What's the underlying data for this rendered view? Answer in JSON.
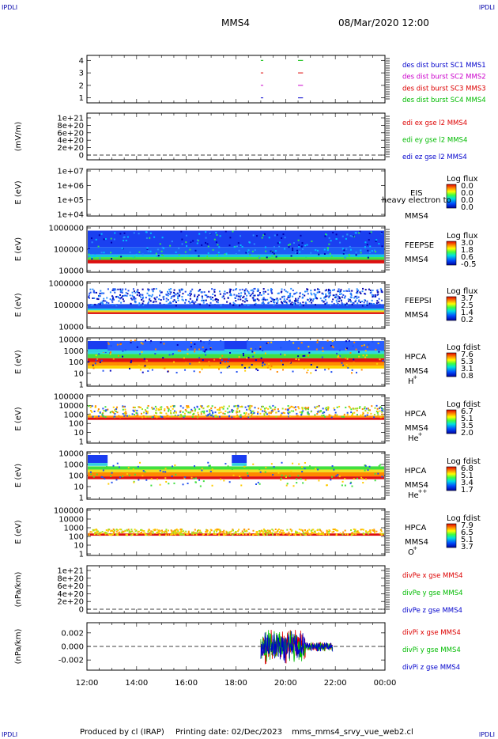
{
  "header": {
    "corner_left_top": "IPDLI",
    "corner_right_top": "IPDLI",
    "mission": "MMS4",
    "datetime": "08/Mar/2020 12:00"
  },
  "footer": {
    "corner_left_bottom": "IPDLI",
    "corner_right_bottom": "IPDLI",
    "produced_by": "Produced by cl (IRAP)",
    "printing_date": "Printing date: 02/Dec/2023",
    "script_name": "mms_mms4_srvy_vue_web2.cl"
  },
  "colors": {
    "mms1": "#0000cc",
    "mms2": "#cc00cc",
    "mms3": "#dd0000",
    "mms4": "#00bb00",
    "x": "#dd0000",
    "y": "#00bb00",
    "z": "#0000cc"
  },
  "chart_data": [
    {
      "type": "scatter",
      "name": "burst-flags",
      "ylabel": "",
      "yticks": [
        "1",
        "2",
        "3",
        "4"
      ],
      "ylim": [
        0.6,
        4.4
      ],
      "legend": [
        "des dist burst SC1 MMS1",
        "des dist burst SC2 MMS2",
        "des dist burst SC3 MMS3",
        "des dist burst SC4 MMS4"
      ],
      "segments_hours": [
        [
          19.0,
          19.1
        ],
        [
          20.5,
          20.7
        ]
      ]
    },
    {
      "type": "line",
      "name": "edi-e-field",
      "ylabel": "(mV/m)",
      "yticks": [
        "0",
        "2e+20",
        "4e+20",
        "6e+20",
        "8e+20",
        "1e+21"
      ],
      "legend": [
        "edi ex gse l2 MMS4",
        "edi ey gse l2 MMS4",
        "edi ez gse l2 MMS4"
      ],
      "zero_line": true
    },
    {
      "type": "heatmap",
      "name": "eis",
      "ylabel": "E (eV)",
      "yticks": [
        "1e+04",
        "1e+05",
        "1e+06",
        "1e+07"
      ],
      "yscale": "log",
      "right_labels": [
        "EIS",
        "MMS4"
      ],
      "overlay_text": "heavy electron to",
      "colorbar": {
        "title": "Log flux",
        "ticks": [
          "0.0",
          "0.0",
          "0.0",
          "0.0"
        ]
      }
    },
    {
      "type": "heatmap",
      "name": "feeps-electron",
      "ylabel": "E (eV)",
      "yticks": [
        "10000",
        "100000",
        "1000000"
      ],
      "yscale": "log",
      "right_labels": [
        "FEEPSE",
        "MMS4"
      ],
      "colorbar": {
        "title": "Log flux",
        "ticks": [
          "3.0",
          "1.8",
          "0.6",
          "-0.5"
        ]
      }
    },
    {
      "type": "heatmap",
      "name": "feeps-ion",
      "ylabel": "E (eV)",
      "yticks": [
        "10000",
        "100000",
        "1000000"
      ],
      "yscale": "log",
      "right_labels": [
        "FEEPSI",
        "MMS4"
      ],
      "colorbar": {
        "title": "Log flux",
        "ticks": [
          "3.7",
          "2.5",
          "1.4",
          "0.2"
        ]
      }
    },
    {
      "type": "heatmap",
      "name": "hpca-h",
      "ylabel": "E (eV)",
      "yticks": [
        "1",
        "10",
        "100",
        "1000",
        "10000"
      ],
      "yscale": "log",
      "right_labels": [
        "HPCA",
        "MMS4",
        "H",
        "+"
      ],
      "colorbar": {
        "title": "Log fdist",
        "ticks": [
          "7.6",
          "5.3",
          "3.1",
          "0.8"
        ]
      }
    },
    {
      "type": "heatmap",
      "name": "hpca-he",
      "ylabel": "E (eV)",
      "yticks": [
        "1",
        "10",
        "100",
        "1000",
        "10000",
        "100000"
      ],
      "yscale": "log",
      "right_labels": [
        "HPCA",
        "MMS4",
        "He",
        "+"
      ],
      "colorbar": {
        "title": "Log fdist",
        "ticks": [
          "6.7",
          "5.1",
          "3.5",
          "2.0"
        ]
      }
    },
    {
      "type": "heatmap",
      "name": "hpca-he2",
      "ylabel": "E (eV)",
      "yticks": [
        "1",
        "10",
        "100",
        "1000",
        "10000"
      ],
      "yscale": "log",
      "right_labels": [
        "HPCA",
        "MMS4",
        "He",
        "++"
      ],
      "colorbar": {
        "title": "Log fdist",
        "ticks": [
          "6.8",
          "5.1",
          "3.4",
          "1.7"
        ]
      }
    },
    {
      "type": "heatmap",
      "name": "hpca-o",
      "ylabel": "E (eV)",
      "yticks": [
        "1",
        "10",
        "100",
        "1000",
        "10000",
        "100000"
      ],
      "yscale": "log",
      "right_labels": [
        "HPCA",
        "MMS4",
        "O",
        "+"
      ],
      "colorbar": {
        "title": "Log fdist",
        "ticks": [
          "7.9",
          "6.5",
          "5.1",
          "3.7"
        ]
      }
    },
    {
      "type": "line",
      "name": "div-pe",
      "ylabel": "(nPa/km)",
      "yticks": [
        "0",
        "2e+20",
        "4e+20",
        "6e+20",
        "8e+20",
        "1e+21"
      ],
      "legend": [
        "divPe x gse MMS4",
        "divPe y gse MMS4",
        "divPe z gse MMS4"
      ],
      "zero_line": true
    },
    {
      "type": "line",
      "name": "div-pi",
      "ylabel": "(nPa/km)",
      "yticks": [
        "-0.002",
        "0.000",
        "0.002"
      ],
      "ylim": [
        -0.0035,
        0.0035
      ],
      "legend": [
        "divPi x gse MMS4",
        "divPi y gse MMS4",
        "divPi z gse MMS4"
      ],
      "zero_line": true,
      "activity_hours": [
        19.0,
        21.9
      ]
    }
  ],
  "time_axis": {
    "labels": [
      "12:00",
      "14:00",
      "16:00",
      "18:00",
      "20:00",
      "22:00",
      "00:00"
    ],
    "start_hour": 12,
    "end_hour": 24
  }
}
